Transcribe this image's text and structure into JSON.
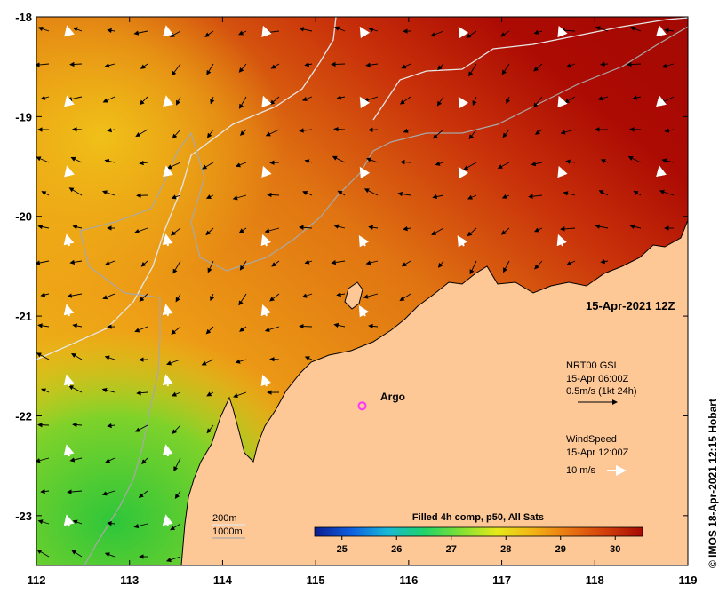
{
  "map": {
    "date_label": "15-Apr-2021 12Z",
    "credit": "© IMOS 18-Apr-2021 12:15 Hobart",
    "x_ticks": [
      "112",
      "113",
      "114",
      "115",
      "116",
      "117",
      "118",
      "119"
    ],
    "y_ticks": [
      "-18",
      "-19",
      "-20",
      "-21",
      "-22",
      "-23"
    ],
    "lon_range": [
      112,
      119
    ],
    "lat_range": [
      -23.5,
      -18
    ],
    "argo": {
      "label": "Argo",
      "lon": 115.5,
      "lat": -21.9,
      "color": "#ff33ff"
    },
    "legend": {
      "current_title": "NRT00 GSL",
      "current_time": "15-Apr 06:00Z",
      "current_scale": "0.5m/s (1kt 24h)",
      "wind_title": "WindSpeed",
      "wind_time": "15-Apr 12:00Z",
      "wind_scale": "10 m/s"
    },
    "isobaths": {
      "label_200": "200m",
      "label_1000": "1000m"
    },
    "colorbar": {
      "title": "Filled 4h comp, p50, All Sats",
      "ticks": [
        "25",
        "26",
        "27",
        "28",
        "29",
        "30"
      ],
      "range": [
        24.5,
        30.5
      ],
      "colors": [
        "#0a1d8f",
        "#0f5fe0",
        "#18b8d6",
        "#1fd36a",
        "#7fe034",
        "#e6ea1a",
        "#f2b314",
        "#e87412",
        "#d23e0a",
        "#a60a03"
      ]
    },
    "colors": {
      "land": "#fdc796",
      "coastline": "#000000",
      "isobath_200": "#e6e6e6",
      "isobath_1000": "#a8a8a8"
    }
  }
}
